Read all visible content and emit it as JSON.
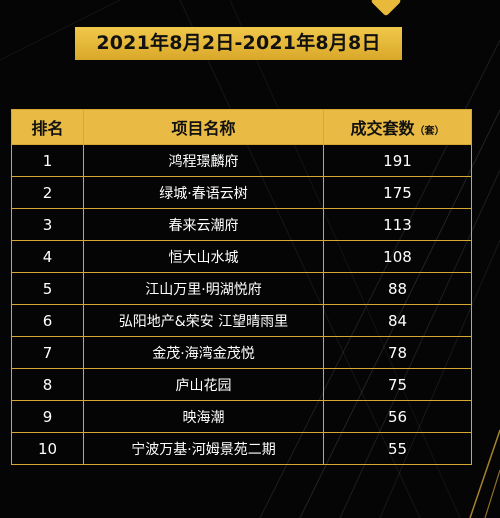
{
  "date_range": "2021年8月2日-2021年8月8日",
  "colors": {
    "accent": "#e9bb45",
    "background": "#050505",
    "text": "#ffffff"
  },
  "table": {
    "headers": {
      "rank": "排名",
      "project": "项目名称",
      "sales": "成交套数",
      "sales_unit": "（套）"
    },
    "rows": [
      {
        "rank": "1",
        "project": "鸿程璟麟府",
        "count": "191"
      },
      {
        "rank": "2",
        "project": "绿城·春语云树",
        "count": "175"
      },
      {
        "rank": "3",
        "project": "春来云潮府",
        "count": "113"
      },
      {
        "rank": "4",
        "project": "恒大山水城",
        "count": "108"
      },
      {
        "rank": "5",
        "project": "江山万里·明湖悦府",
        "count": "88"
      },
      {
        "rank": "6",
        "project": "弘阳地产&荣安 江望晴雨里",
        "count": "84"
      },
      {
        "rank": "7",
        "project": "金茂·海湾金茂悦",
        "count": "78"
      },
      {
        "rank": "8",
        "project": "庐山花园",
        "count": "75"
      },
      {
        "rank": "9",
        "project": "映海潮",
        "count": "56"
      },
      {
        "rank": "10",
        "project": "宁波万基·河姆景苑二期",
        "count": "55"
      }
    ]
  }
}
